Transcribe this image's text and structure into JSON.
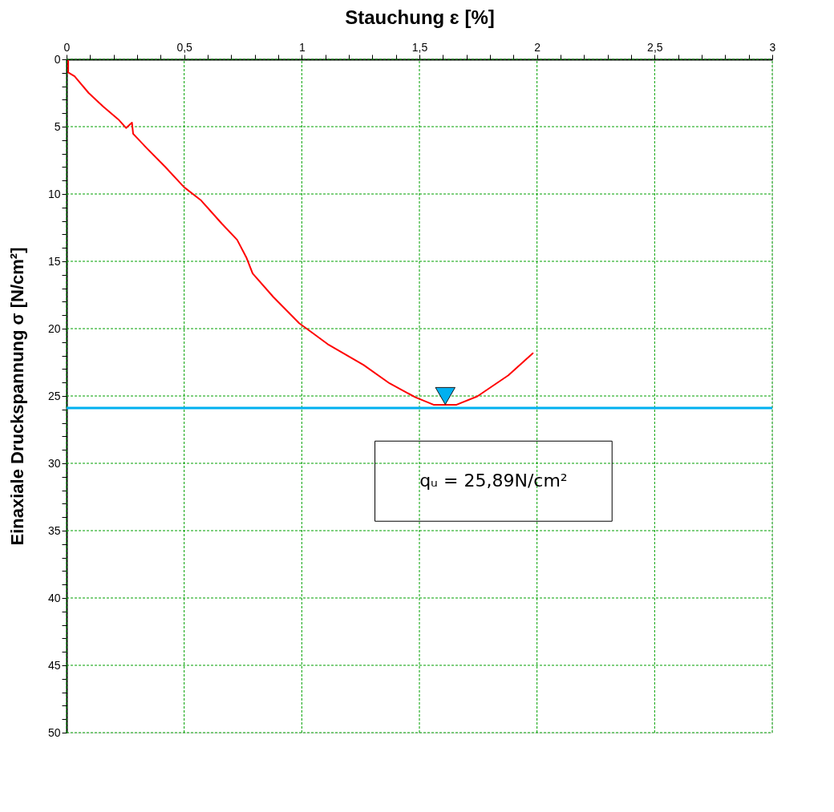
{
  "chart_data": {
    "type": "line",
    "xlabel": "Stauchung ɛ [%]",
    "ylabel": "Einaxiale Druckspannung σ [N/cm²]",
    "xlim": [
      0,
      3
    ],
    "xticks": [
      0,
      {
        "value": 0.1,
        "label": null
      },
      {
        "value": 0.2,
        "label": null
      },
      {
        "value": 0.3,
        "label": null
      },
      {
        "value": 0.4,
        "label": null
      },
      {
        "value": 0.5,
        "label": "0,5"
      },
      {
        "value": 0.6,
        "label": null
      },
      {
        "value": 0.7,
        "label": null
      },
      {
        "value": 0.8,
        "label": null
      },
      {
        "value": 0.9,
        "label": null
      },
      1,
      {
        "value": 1.1,
        "label": null
      },
      {
        "value": 1.2,
        "label": null
      },
      {
        "value": 1.3,
        "label": null
      },
      {
        "value": 1.4,
        "label": null
      },
      {
        "value": 1.5,
        "label": "1,5"
      },
      {
        "value": 1.6,
        "label": null
      },
      {
        "value": 1.7,
        "label": null
      },
      {
        "value": 1.8,
        "label": null
      },
      {
        "value": 1.9,
        "label": null
      },
      2,
      {
        "value": 2.1,
        "label": null
      },
      {
        "value": 2.2,
        "label": null
      },
      {
        "value": 2.3,
        "label": null
      },
      {
        "value": 2.4,
        "label": null
      },
      {
        "value": 2.5,
        "label": "2,5"
      },
      {
        "value": 2.6,
        "label": null
      },
      {
        "value": 2.7,
        "label": null
      },
      {
        "value": 2.8,
        "label": null
      },
      {
        "value": 2.9,
        "label": null
      },
      3
    ],
    "ylim": [
      50,
      0
    ],
    "yticks": [
      0,
      {
        "value": 1,
        "label": null
      },
      {
        "value": 2,
        "label": null
      },
      {
        "value": 3,
        "label": null
      },
      {
        "value": 4,
        "label": null
      },
      5,
      {
        "value": 6,
        "label": null
      },
      {
        "value": 7,
        "label": null
      },
      {
        "value": 8,
        "label": null
      },
      {
        "value": 9,
        "label": null
      },
      10,
      {
        "value": 11,
        "label": null
      },
      {
        "value": 12,
        "label": null
      },
      {
        "value": 13,
        "label": null
      },
      {
        "value": 14,
        "label": null
      },
      15,
      {
        "value": 16,
        "label": null
      },
      {
        "value": 17,
        "label": null
      },
      {
        "value": 18,
        "label": null
      },
      {
        "value": 19,
        "label": null
      },
      20,
      {
        "value": 21,
        "label": null
      },
      {
        "value": 22,
        "label": null
      },
      {
        "value": 23,
        "label": null
      },
      {
        "value": 24,
        "label": null
      },
      25,
      {
        "value": 26,
        "label": null
      },
      {
        "value": 27,
        "label": null
      },
      {
        "value": 28,
        "label": null
      },
      {
        "value": 29,
        "label": null
      },
      30,
      {
        "value": 31,
        "label": null
      },
      {
        "value": 32,
        "label": null
      },
      {
        "value": 33,
        "label": null
      },
      {
        "value": 34,
        "label": null
      },
      35,
      {
        "value": 36,
        "label": null
      },
      {
        "value": 37,
        "label": null
      },
      {
        "value": 38,
        "label": null
      },
      {
        "value": 39,
        "label": null
      },
      40,
      {
        "value": 41,
        "label": null
      },
      {
        "value": 42,
        "label": null
      },
      {
        "value": 43,
        "label": null
      },
      {
        "value": 44,
        "label": null
      },
      45,
      {
        "value": 46,
        "label": null
      },
      {
        "value": 47,
        "label": null
      },
      {
        "value": 48,
        "label": null
      },
      {
        "value": 49,
        "label": null
      },
      50
    ],
    "grid": true,
    "marker": "none",
    "line_style": "solid",
    "series": [
      {
        "type": "line",
        "color": "#ff0000",
        "x": [
          0.007,
          0.007,
          0.034,
          0.094,
          0.155,
          0.22,
          0.253,
          0.278,
          0.283,
          0.341,
          0.418,
          0.5,
          0.572,
          0.66,
          0.725,
          0.764,
          0.791,
          0.879,
          0.989,
          1.044,
          1.11,
          1.263,
          1.373,
          1.483,
          1.56,
          1.658,
          1.746,
          1.878,
          1.982
        ],
        "values": [
          0.1,
          0.97,
          1.26,
          2.5,
          3.5,
          4.46,
          5.1,
          4.7,
          5.53,
          6.6,
          7.96,
          9.5,
          10.48,
          12.2,
          13.4,
          14.7,
          15.9,
          17.65,
          19.6,
          20.3,
          21.15,
          22.7,
          24.06,
          25.1,
          25.65,
          25.65,
          25.03,
          23.47,
          21.83
        ]
      },
      {
        "type": "scatter",
        "color": "#00b0f0",
        "marker": "triangle",
        "x": [
          1.61
        ],
        "values": [
          25.0
        ]
      }
    ],
    "ref_lines": [
      {
        "axis": "y",
        "value": 25.89,
        "color": "#00b0f0",
        "line_style": "solid"
      }
    ],
    "annotations": [
      "qᵤ =  25,89N/cm²"
    ]
  }
}
